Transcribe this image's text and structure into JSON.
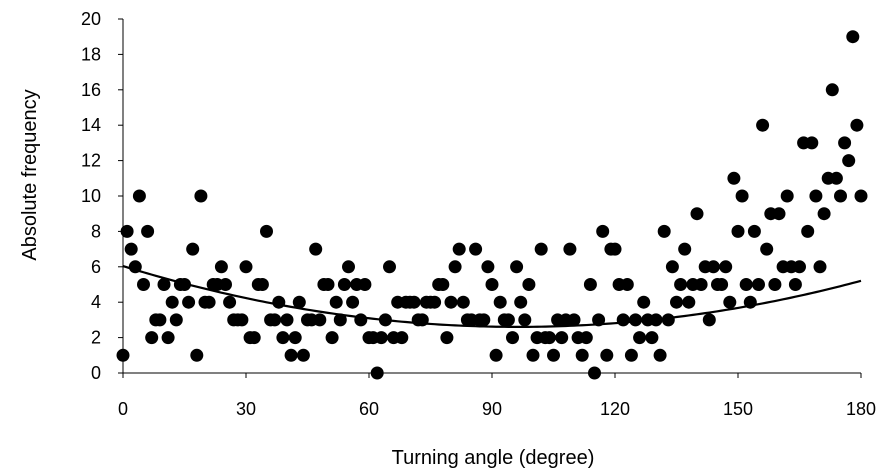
{
  "chart_data": {
    "type": "scatter",
    "xlabel": "Turning angle (degree)",
    "ylabel": "Absolute frequency",
    "xlim": [
      0,
      180
    ],
    "ylim": [
      0,
      20
    ],
    "xticks": [
      0,
      30,
      60,
      90,
      120,
      150,
      180
    ],
    "yticks": [
      0,
      2,
      4,
      6,
      8,
      10,
      12,
      14,
      16,
      18,
      20
    ],
    "grid": false,
    "legend": "none",
    "marker_color": "#000000",
    "trendline": {
      "type": "polynomial",
      "order": 2,
      "color": "#000000",
      "coefficients": [
        6.04,
        -0.0714,
        0.000371
      ]
    },
    "series": [
      {
        "x": [
          0,
          1,
          2,
          3,
          4,
          5,
          6,
          7,
          8,
          9,
          10,
          11,
          12,
          13,
          14,
          15,
          16,
          17,
          18,
          19,
          20,
          21,
          22,
          23,
          24,
          25,
          26,
          27,
          28,
          29,
          30,
          31,
          32,
          33,
          34,
          35,
          36,
          37,
          38,
          39,
          40,
          41,
          42,
          43,
          44,
          45,
          46,
          47,
          48,
          49,
          50,
          51,
          52,
          53,
          54,
          55,
          56,
          57,
          58,
          59,
          60,
          61,
          62,
          63,
          64,
          65,
          66,
          67,
          68,
          69,
          70,
          71,
          72,
          73,
          74,
          75,
          76,
          77,
          78,
          79,
          80,
          81,
          82,
          83,
          84,
          85,
          86,
          87,
          88,
          89,
          90,
          91,
          92,
          93,
          94,
          95,
          96,
          97,
          98,
          99,
          100,
          101,
          102,
          103,
          104,
          105,
          106,
          107,
          108,
          109,
          110,
          111,
          112,
          113,
          114,
          115,
          116,
          117,
          118,
          119,
          120,
          121,
          122,
          123,
          124,
          125,
          126,
          127,
          128,
          129,
          130,
          131,
          132,
          133,
          134,
          135,
          136,
          137,
          138,
          139,
          140,
          141,
          142,
          143,
          144,
          145,
          146,
          147,
          148,
          149,
          150,
          151,
          152,
          153,
          154,
          155,
          156,
          157,
          158,
          159,
          160,
          161,
          162,
          163,
          164,
          165,
          166,
          167,
          168,
          169,
          170,
          171,
          172,
          173,
          174,
          175,
          176,
          177,
          178,
          179,
          180
        ],
        "y": [
          1,
          8,
          7,
          6,
          10,
          5,
          8,
          2,
          3,
          3,
          5,
          2,
          4,
          3,
          5,
          5,
          4,
          7,
          1,
          10,
          4,
          4,
          5,
          5,
          6,
          5,
          4,
          3,
          3,
          3,
          6,
          2,
          2,
          5,
          5,
          8,
          3,
          3,
          4,
          2,
          3,
          1,
          2,
          4,
          1,
          3,
          3,
          7,
          3,
          5,
          5,
          2,
          4,
          3,
          5,
          6,
          4,
          5,
          3,
          5,
          2,
          2,
          0,
          2,
          3,
          6,
          2,
          4,
          2,
          4,
          4,
          4,
          3,
          3,
          4,
          4,
          4,
          5,
          5,
          2,
          4,
          6,
          7,
          4,
          3,
          3,
          7,
          3,
          3,
          6,
          5,
          1,
          4,
          3,
          3,
          2,
          6,
          4,
          3,
          5,
          1,
          2,
          7,
          2,
          2,
          1,
          3,
          2,
          3,
          7,
          3,
          2,
          1,
          2,
          5,
          0,
          3,
          8,
          1,
          7,
          7,
          5,
          3,
          5,
          1,
          3,
          2,
          4,
          3,
          2,
          3,
          1,
          8,
          3,
          6,
          4,
          5,
          7,
          4,
          5,
          9,
          5,
          6,
          3,
          6,
          5,
          5,
          6,
          4,
          11,
          8,
          10,
          5,
          4,
          8,
          5,
          14,
          7,
          9,
          5,
          9,
          6,
          10,
          6,
          5,
          6,
          13,
          8,
          13,
          10,
          6,
          9,
          11,
          16,
          11,
          10,
          13,
          12,
          19,
          14,
          10
        ]
      }
    ]
  }
}
